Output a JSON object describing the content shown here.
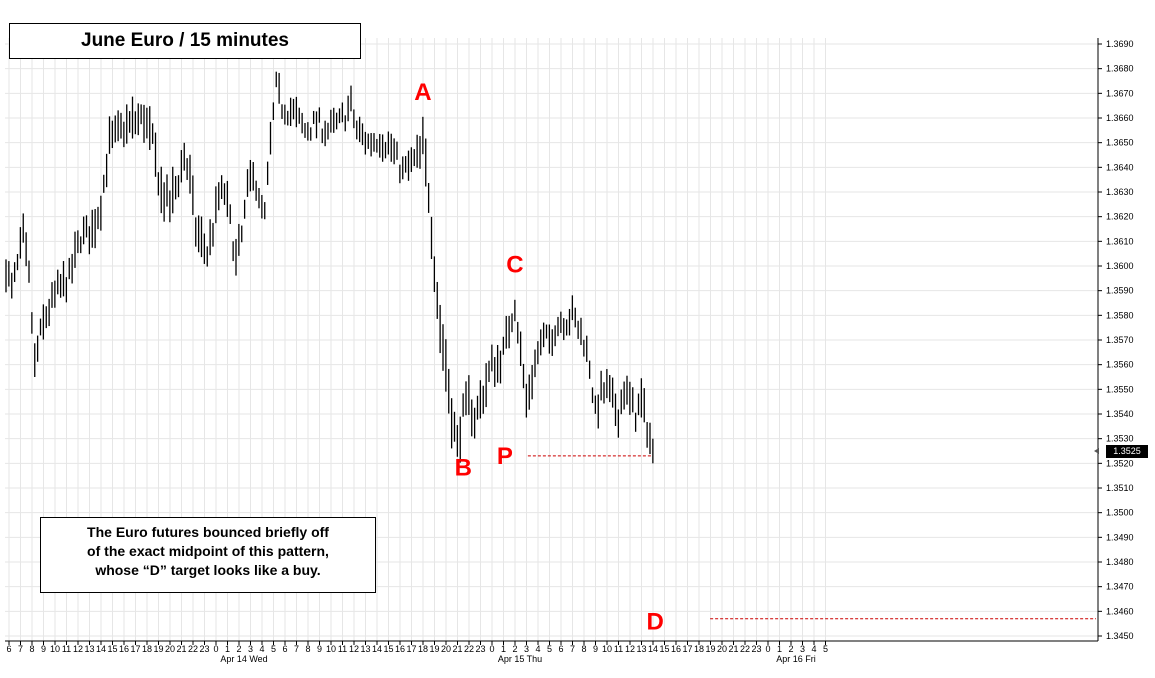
{
  "title": "June Euro  /  15 minutes",
  "note": [
    "The Euro futures bounced briefly off",
    "of the exact midpoint of this pattern,",
    "whose “D” target looks like a buy."
  ],
  "last_price_label": "1.3525",
  "chart_data": {
    "type": "bar",
    "style": "OHLC price bars",
    "ylim": [
      1.345,
      1.369
    ],
    "yticks": [
      "1.3450",
      "1.3460",
      "1.3470",
      "1.3480",
      "1.3490",
      "1.3500",
      "1.3510",
      "1.3520",
      "1.3530",
      "1.3540",
      "1.3550",
      "1.3560",
      "1.3570",
      "1.3580",
      "1.3590",
      "1.3600",
      "1.3610",
      "1.3620",
      "1.3630",
      "1.3640",
      "1.3650",
      "1.3660",
      "1.3670",
      "1.3680",
      "1.3690"
    ],
    "x_hour_labels": [
      "6",
      "7",
      "8",
      "9",
      "10",
      "11",
      "12",
      "13",
      "14",
      "15",
      "16",
      "17",
      "18",
      "19",
      "20",
      "21",
      "22",
      "23",
      "0",
      "1",
      "2",
      "3",
      "4",
      "5",
      "6",
      "7",
      "8",
      "9",
      "10",
      "11",
      "12",
      "13",
      "14",
      "15",
      "16",
      "17",
      "18",
      "19",
      "20",
      "21",
      "22",
      "23",
      "0",
      "1",
      "2",
      "3",
      "4",
      "5",
      "6",
      "7",
      "8",
      "9",
      "10",
      "11",
      "12",
      "13",
      "14",
      "15",
      "16",
      "17",
      "18",
      "19",
      "20",
      "21",
      "22",
      "23",
      "0",
      "1",
      "2",
      "3",
      "4",
      "5"
    ],
    "x_day_labels": [
      {
        "hour_index": 18,
        "label": "Apr 14 Wed"
      },
      {
        "hour_index": 42,
        "label": "Apr 15 Thu"
      },
      {
        "hour_index": 66,
        "label": "Apr 16 Fri"
      }
    ],
    "grid": true,
    "axis_side": "right",
    "anchors": [
      [
        0,
        1.36
      ],
      [
        2,
        1.359
      ],
      [
        4,
        1.36
      ],
      [
        6,
        1.3612
      ],
      [
        8,
        1.3595
      ],
      [
        10,
        1.356
      ],
      [
        12,
        1.3572
      ],
      [
        14,
        1.358
      ],
      [
        18,
        1.359
      ],
      [
        22,
        1.3595
      ],
      [
        26,
        1.3612
      ],
      [
        30,
        1.3614
      ],
      [
        33,
        1.3625
      ],
      [
        36,
        1.365
      ],
      [
        40,
        1.3655
      ],
      [
        44,
        1.3658
      ],
      [
        48,
        1.366
      ],
      [
        51,
        1.365
      ],
      [
        54,
        1.363
      ],
      [
        57,
        1.3625
      ],
      [
        60,
        1.3635
      ],
      [
        62,
        1.3645
      ],
      [
        64,
        1.3635
      ],
      [
        66,
        1.3615
      ],
      [
        70,
        1.3605
      ],
      [
        72,
        1.3615
      ],
      [
        74,
        1.3628
      ],
      [
        76,
        1.363
      ],
      [
        78,
        1.3618
      ],
      [
        80,
        1.3602
      ],
      [
        82,
        1.3612
      ],
      [
        84,
        1.363
      ],
      [
        86,
        1.364
      ],
      [
        88,
        1.3625
      ],
      [
        90,
        1.362
      ],
      [
        92,
        1.365
      ],
      [
        94,
        1.3672
      ],
      [
        96,
        1.3665
      ],
      [
        100,
        1.3662
      ],
      [
        104,
        1.3655
      ],
      [
        108,
        1.3658
      ],
      [
        112,
        1.3655
      ],
      [
        116,
        1.3658
      ],
      [
        120,
        1.3665
      ],
      [
        122,
        1.3655
      ],
      [
        126,
        1.365
      ],
      [
        130,
        1.3652
      ],
      [
        134,
        1.3648
      ],
      [
        138,
        1.3638
      ],
      [
        140,
        1.364
      ],
      [
        144,
        1.3645
      ],
      [
        145,
        1.365
      ],
      [
        147,
        1.363
      ],
      [
        149,
        1.36
      ],
      [
        151,
        1.3575
      ],
      [
        153,
        1.356
      ],
      [
        155,
        1.354
      ],
      [
        157,
        1.3527
      ],
      [
        159,
        1.354
      ],
      [
        161,
        1.3545
      ],
      [
        163,
        1.3538
      ],
      [
        165,
        1.3545
      ],
      [
        167,
        1.3552
      ],
      [
        169,
        1.356
      ],
      [
        171,
        1.356
      ],
      [
        173,
        1.3565
      ],
      [
        175,
        1.3575
      ],
      [
        177,
        1.3585
      ],
      [
        179,
        1.3565
      ],
      [
        181,
        1.3545
      ],
      [
        183,
        1.3555
      ],
      [
        185,
        1.3565
      ],
      [
        187,
        1.357
      ],
      [
        189,
        1.357
      ],
      [
        191,
        1.3575
      ],
      [
        193,
        1.3578
      ],
      [
        195,
        1.3578
      ],
      [
        197,
        1.358
      ],
      [
        199,
        1.3575
      ],
      [
        201,
        1.357
      ],
      [
        203,
        1.356
      ],
      [
        205,
        1.354
      ],
      [
        207,
        1.3548
      ],
      [
        209,
        1.355
      ],
      [
        211,
        1.3545
      ],
      [
        213,
        1.354
      ],
      [
        215,
        1.355
      ],
      [
        217,
        1.3545
      ],
      [
        219,
        1.354
      ],
      [
        221,
        1.3545
      ],
      [
        223,
        1.3535
      ],
      [
        225,
        1.3525
      ]
    ],
    "bar_spread": [
      [
        0,
        0.001
      ],
      [
        40,
        0.0012
      ],
      [
        55,
        0.0014
      ],
      [
        110,
        0.0008
      ],
      [
        140,
        0.0009
      ],
      [
        150,
        0.0018
      ],
      [
        160,
        0.0014
      ],
      [
        190,
        0.0009
      ],
      [
        226,
        0.0012
      ]
    ],
    "last_bar": {
      "high": 1.353,
      "low": 1.352,
      "close": 1.3525
    },
    "points": [
      {
        "label": "A",
        "bar_index": 145,
        "price": 1.3651
      },
      {
        "label": "B",
        "bar_index": 158,
        "price": 1.3524
      },
      {
        "label": "C",
        "bar_index": 177,
        "price": 1.3586
      },
      {
        "label": "P",
        "bar_index": 225,
        "price": 1.3523
      },
      {
        "label": "D",
        "bar_index": 239,
        "price": 1.3457
      }
    ],
    "levels": [
      {
        "label": "P",
        "price": 1.3523,
        "color": "#cc0000",
        "style": "dashed"
      },
      {
        "label": "D",
        "price": 1.3457,
        "color": "#cc0000",
        "style": "dashed"
      }
    ],
    "colors": {
      "bars": "#000000",
      "grid": "#e6e6e6",
      "labels": "#ff0000",
      "levels": "#cc0000"
    }
  }
}
